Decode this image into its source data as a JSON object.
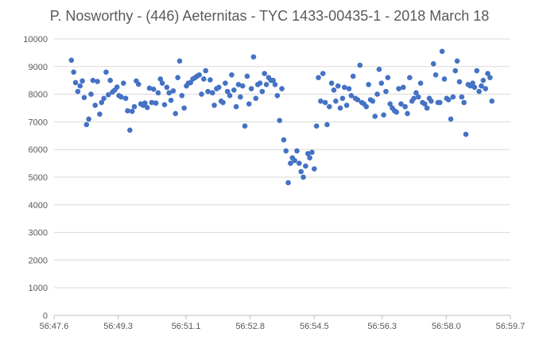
{
  "chart_data": {
    "type": "scatter",
    "title": "P. Nosworthy - (446) Aeternitas - TYC 1433-00435-1 - 2018 March 18",
    "xlabel": "",
    "ylabel": "",
    "ylim": [
      0,
      10000
    ],
    "xlim": [
      "56:47.6",
      "56:59.7"
    ],
    "y_ticks": [
      "0",
      "1000",
      "2000",
      "3000",
      "4000",
      "5000",
      "6000",
      "7000",
      "8000",
      "9000",
      "10000"
    ],
    "x_ticks": [
      "56:47.6",
      "56:49.3",
      "56:51.1",
      "56:52.8",
      "56:54.5",
      "56:56.3",
      "56:58.0",
      "56:59.7"
    ],
    "grid": "horizontal",
    "legend": "none",
    "marker_color": "#4472c4",
    "grid_color": "#d9d9d9",
    "x_unit": "mm:ss.s",
    "points": [
      [
        "56:48.06",
        9230
      ],
      [
        "56:48.12",
        8800
      ],
      [
        "56:48.17",
        8420
      ],
      [
        "56:48.23",
        8100
      ],
      [
        "56:48.29",
        8300
      ],
      [
        "56:48.35",
        8480
      ],
      [
        "56:48.40",
        7880
      ],
      [
        "56:48.46",
        6900
      ],
      [
        "56:48.52",
        7100
      ],
      [
        "56:48.58",
        8000
      ],
      [
        "56:48.63",
        8500
      ],
      [
        "56:48.69",
        7600
      ],
      [
        "56:48.75",
        8460
      ],
      [
        "56:48.81",
        7280
      ],
      [
        "56:48.86",
        7700
      ],
      [
        "56:48.92",
        7850
      ],
      [
        "56:48.98",
        8800
      ],
      [
        "56:49.04",
        7980
      ],
      [
        "56:49.09",
        8500
      ],
      [
        "56:49.15",
        8080
      ],
      [
        "56:49.21",
        8150
      ],
      [
        "56:49.27",
        8260
      ],
      [
        "56:49.32",
        7950
      ],
      [
        "56:49.38",
        7900
      ],
      [
        "56:49.44",
        8400
      ],
      [
        "56:49.50",
        7850
      ],
      [
        "56:49.55",
        7400
      ],
      [
        "56:49.61",
        6700
      ],
      [
        "56:49.67",
        7380
      ],
      [
        "56:49.73",
        7550
      ],
      [
        "56:49.78",
        8480
      ],
      [
        "56:49.84",
        8360
      ],
      [
        "56:49.90",
        7650
      ],
      [
        "56:49.96",
        7600
      ],
      [
        "56:50.01",
        7680
      ],
      [
        "56:50.07",
        7520
      ],
      [
        "56:50.13",
        8220
      ],
      [
        "56:50.19",
        7700
      ],
      [
        "56:50.24",
        8180
      ],
      [
        "56:50.30",
        7680
      ],
      [
        "56:50.36",
        8050
      ],
      [
        "56:50.42",
        8550
      ],
      [
        "56:50.47",
        8400
      ],
      [
        "56:50.53",
        7620
      ],
      [
        "56:50.59",
        8250
      ],
      [
        "56:50.65",
        8050
      ],
      [
        "56:50.70",
        7780
      ],
      [
        "56:50.76",
        8120
      ],
      [
        "56:50.82",
        7300
      ],
      [
        "56:50.88",
        8600
      ],
      [
        "56:50.93",
        9200
      ],
      [
        "56:50.99",
        7950
      ],
      [
        "56:51.05",
        7500
      ],
      [
        "56:51.11",
        8300
      ],
      [
        "56:51.16",
        8400
      ],
      [
        "56:51.22",
        8420
      ],
      [
        "56:51.28",
        8550
      ],
      [
        "56:51.34",
        8600
      ],
      [
        "56:51.39",
        8650
      ],
      [
        "56:51.45",
        8700
      ],
      [
        "56:51.51",
        8000
      ],
      [
        "56:51.57",
        8550
      ],
      [
        "56:51.62",
        8850
      ],
      [
        "56:51.68",
        8100
      ],
      [
        "56:51.74",
        8520
      ],
      [
        "56:51.80",
        8050
      ],
      [
        "56:51.85",
        7600
      ],
      [
        "56:51.91",
        8200
      ],
      [
        "56:51.97",
        8250
      ],
      [
        "56:52.03",
        7750
      ],
      [
        "56:52.08",
        7700
      ],
      [
        "56:52.14",
        8400
      ],
      [
        "56:52.20",
        8100
      ],
      [
        "56:52.26",
        7950
      ],
      [
        "56:52.31",
        8700
      ],
      [
        "56:52.37",
        8150
      ],
      [
        "56:52.43",
        7550
      ],
      [
        "56:52.49",
        8350
      ],
      [
        "56:52.54",
        7900
      ],
      [
        "56:52.60",
        8300
      ],
      [
        "56:52.66",
        6850
      ],
      [
        "56:52.72",
        8650
      ],
      [
        "56:52.77",
        7650
      ],
      [
        "56:52.83",
        8200
      ],
      [
        "56:52.89",
        9350
      ],
      [
        "56:52.95",
        7850
      ],
      [
        "56:53.00",
        8350
      ],
      [
        "56:53.06",
        8400
      ],
      [
        "56:53.12",
        8100
      ],
      [
        "56:53.18",
        8750
      ],
      [
        "56:53.23",
        8350
      ],
      [
        "56:53.29",
        8600
      ],
      [
        "56:53.35",
        8500
      ],
      [
        "56:53.41",
        8500
      ],
      [
        "56:53.46",
        8350
      ],
      [
        "56:53.52",
        7950
      ],
      [
        "56:53.58",
        7050
      ],
      [
        "56:53.64",
        8200
      ],
      [
        "56:53.69",
        6350
      ],
      [
        "56:53.75",
        5950
      ],
      [
        "56:53.81",
        4800
      ],
      [
        "56:53.87",
        5500
      ],
      [
        "56:53.92",
        5700
      ],
      [
        "56:53.98",
        5600
      ],
      [
        "56:54.04",
        5950
      ],
      [
        "56:54.10",
        5500
      ],
      [
        "56:54.15",
        5200
      ],
      [
        "56:54.21",
        5000
      ],
      [
        "56:54.27",
        5400
      ],
      [
        "56:54.33",
        5850
      ],
      [
        "56:54.38",
        5700
      ],
      [
        "56:54.44",
        5900
      ],
      [
        "56:54.50",
        5300
      ],
      [
        "56:54.56",
        6850
      ],
      [
        "56:54.61",
        8600
      ],
      [
        "56:54.67",
        7750
      ],
      [
        "56:54.73",
        8750
      ],
      [
        "56:54.79",
        7700
      ],
      [
        "56:54.84",
        6900
      ],
      [
        "56:54.90",
        7550
      ],
      [
        "56:54.96",
        8400
      ],
      [
        "56:55.02",
        8150
      ],
      [
        "56:55.07",
        7750
      ],
      [
        "56:55.13",
        8300
      ],
      [
        "56:55.19",
        7500
      ],
      [
        "56:55.25",
        7850
      ],
      [
        "56:55.30",
        8250
      ],
      [
        "56:55.36",
        7600
      ],
      [
        "56:55.42",
        8200
      ],
      [
        "56:55.48",
        7950
      ],
      [
        "56:55.53",
        8650
      ],
      [
        "56:55.59",
        7850
      ],
      [
        "56:55.65",
        7800
      ],
      [
        "56:55.71",
        9050
      ],
      [
        "56:55.76",
        7700
      ],
      [
        "56:55.82",
        7650
      ],
      [
        "56:55.88",
        7550
      ],
      [
        "56:55.94",
        8350
      ],
      [
        "56:55.99",
        7800
      ],
      [
        "56:56.05",
        7750
      ],
      [
        "56:56.11",
        7200
      ],
      [
        "56:56.17",
        8000
      ],
      [
        "56:56.22",
        8900
      ],
      [
        "56:56.28",
        8400
      ],
      [
        "56:56.34",
        7250
      ],
      [
        "56:56.40",
        8100
      ],
      [
        "56:56.45",
        8600
      ],
      [
        "56:56.51",
        7650
      ],
      [
        "56:56.57",
        7500
      ],
      [
        "56:56.63",
        7400
      ],
      [
        "56:56.68",
        7350
      ],
      [
        "56:56.74",
        8200
      ],
      [
        "56:56.80",
        7650
      ],
      [
        "56:56.86",
        8250
      ],
      [
        "56:56.91",
        7550
      ],
      [
        "56:56.97",
        7300
      ],
      [
        "56:57.03",
        8600
      ],
      [
        "56:57.09",
        7750
      ],
      [
        "56:57.14",
        7850
      ],
      [
        "56:57.20",
        8050
      ],
      [
        "56:57.26",
        7900
      ],
      [
        "56:57.32",
        8400
      ],
      [
        "56:57.37",
        7700
      ],
      [
        "56:57.43",
        7650
      ],
      [
        "56:57.49",
        7500
      ],
      [
        "56:57.55",
        7850
      ],
      [
        "56:57.60",
        7750
      ],
      [
        "56:57.66",
        9100
      ],
      [
        "56:57.72",
        8700
      ],
      [
        "56:57.78",
        7700
      ],
      [
        "56:57.83",
        7700
      ],
      [
        "56:57.89",
        9550
      ],
      [
        "56:57.95",
        8550
      ],
      [
        "56:58.01",
        7850
      ],
      [
        "56:58.06",
        7800
      ],
      [
        "56:58.12",
        7100
      ],
      [
        "56:58.18",
        7900
      ],
      [
        "56:58.24",
        8850
      ],
      [
        "56:58.29",
        9200
      ],
      [
        "56:58.35",
        8450
      ],
      [
        "56:58.41",
        7900
      ],
      [
        "56:58.47",
        7700
      ],
      [
        "56:58.52",
        6550
      ],
      [
        "56:58.58",
        8350
      ],
      [
        "56:58.64",
        8300
      ],
      [
        "56:58.70",
        8400
      ],
      [
        "56:58.75",
        8250
      ],
      [
        "56:58.81",
        8850
      ],
      [
        "56:58.87",
        8100
      ],
      [
        "56:58.93",
        8300
      ],
      [
        "56:58.98",
        8500
      ],
      [
        "56:59.04",
        8200
      ],
      [
        "56:59.10",
        8750
      ],
      [
        "56:59.16",
        8600
      ],
      [
        "56:59.21",
        7750
      ]
    ]
  }
}
